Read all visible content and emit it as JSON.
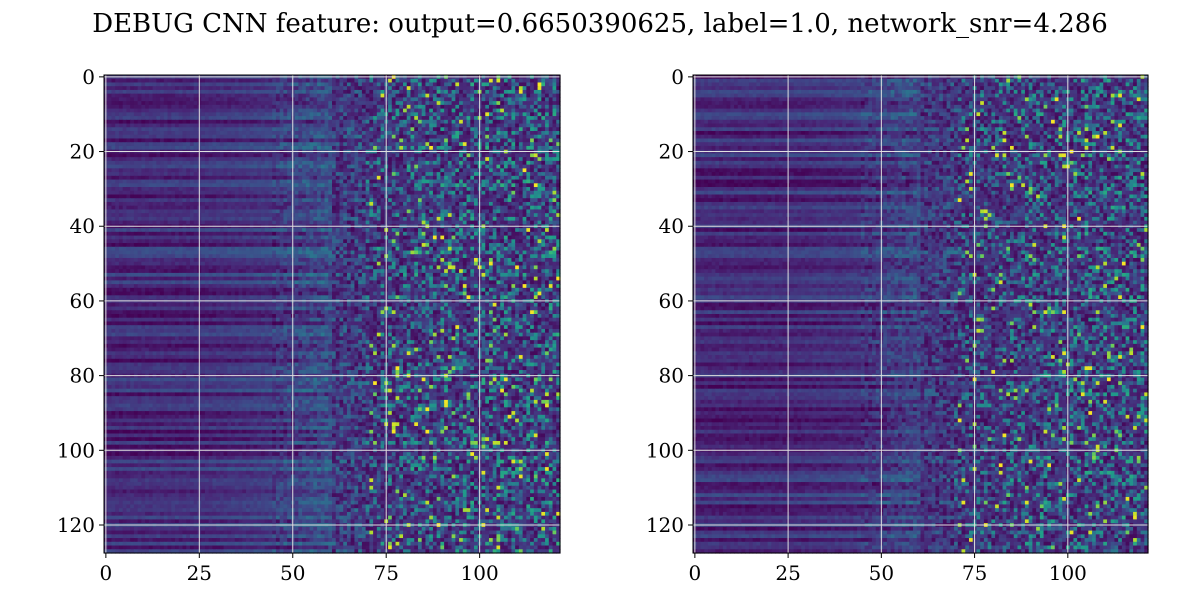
{
  "title": "DEBUG CNN feature: output=0.6650390625, label=1.0, network_snr=4.286",
  "chart_data": [
    {
      "type": "heatmap",
      "panel": "left",
      "colormap": "viridis",
      "n_rows": 128,
      "n_cols": 122,
      "xlim": [
        -0.5,
        121.5
      ],
      "ylim": [
        127.5,
        -0.5
      ],
      "xticks": [
        0,
        25,
        50,
        75,
        100
      ],
      "yticks": [
        0,
        20,
        40,
        60,
        80,
        100,
        120
      ],
      "grid": true,
      "value_range": [
        0,
        1
      ],
      "column_profile": {
        "x": [
          0,
          25,
          45,
          55,
          65,
          75,
          90,
          105,
          121
        ],
        "mean_intensity": [
          0.12,
          0.13,
          0.17,
          0.22,
          0.27,
          0.33,
          0.37,
          0.4,
          0.4
        ]
      }
    },
    {
      "type": "heatmap",
      "panel": "right",
      "colormap": "viridis",
      "n_rows": 128,
      "n_cols": 122,
      "xlim": [
        -0.5,
        121.5
      ],
      "ylim": [
        127.5,
        -0.5
      ],
      "xticks": [
        0,
        25,
        50,
        75,
        100
      ],
      "yticks": [
        0,
        20,
        40,
        60,
        80,
        100,
        120
      ],
      "grid": true,
      "value_range": [
        0,
        1
      ],
      "column_profile": {
        "x": [
          0,
          25,
          45,
          55,
          65,
          75,
          90,
          105,
          121
        ],
        "mean_intensity": [
          0.12,
          0.12,
          0.15,
          0.19,
          0.24,
          0.3,
          0.35,
          0.38,
          0.38
        ]
      }
    }
  ],
  "colors": {
    "background": "#ffffff",
    "grid": "#e0e0e0",
    "axis": "#000000",
    "viridis_low": "#440154",
    "viridis_high": "#fde725"
  }
}
